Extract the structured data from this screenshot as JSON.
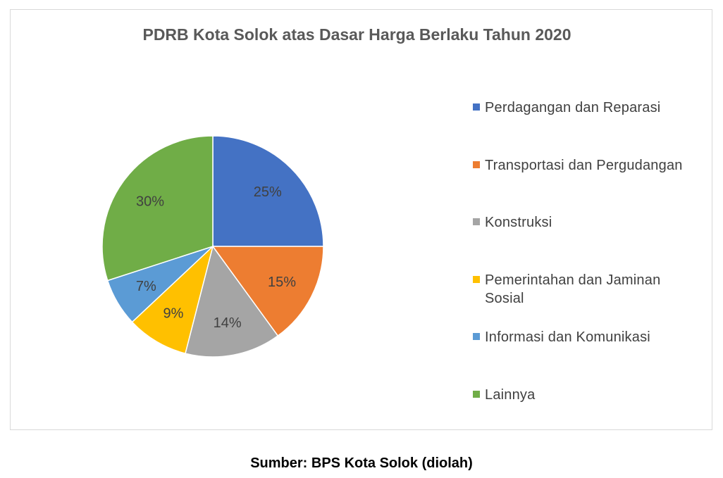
{
  "chart_data": {
    "type": "pie",
    "title": "PDRB Kota Solok atas Dasar Harga Berlaku Tahun 2020",
    "categories": [
      "Perdagangan dan Reparasi",
      "Transportasi dan Pergudangan",
      "Konstruksi",
      "Pemerintahan dan Jaminan Sosial",
      "Informasi dan Komunikasi",
      "Lainnya"
    ],
    "values": [
      25,
      15,
      14,
      9,
      7,
      30
    ],
    "data_labels": [
      "25%",
      "15%",
      "14%",
      "9%",
      "7%",
      "30%"
    ],
    "colors": [
      "#4472c4",
      "#ed7d31",
      "#a5a5a5",
      "#ffc000",
      "#5b9bd5",
      "#70ad47"
    ],
    "legend_position": "right"
  },
  "source": "Sumber: BPS Kota Solok (diolah)"
}
